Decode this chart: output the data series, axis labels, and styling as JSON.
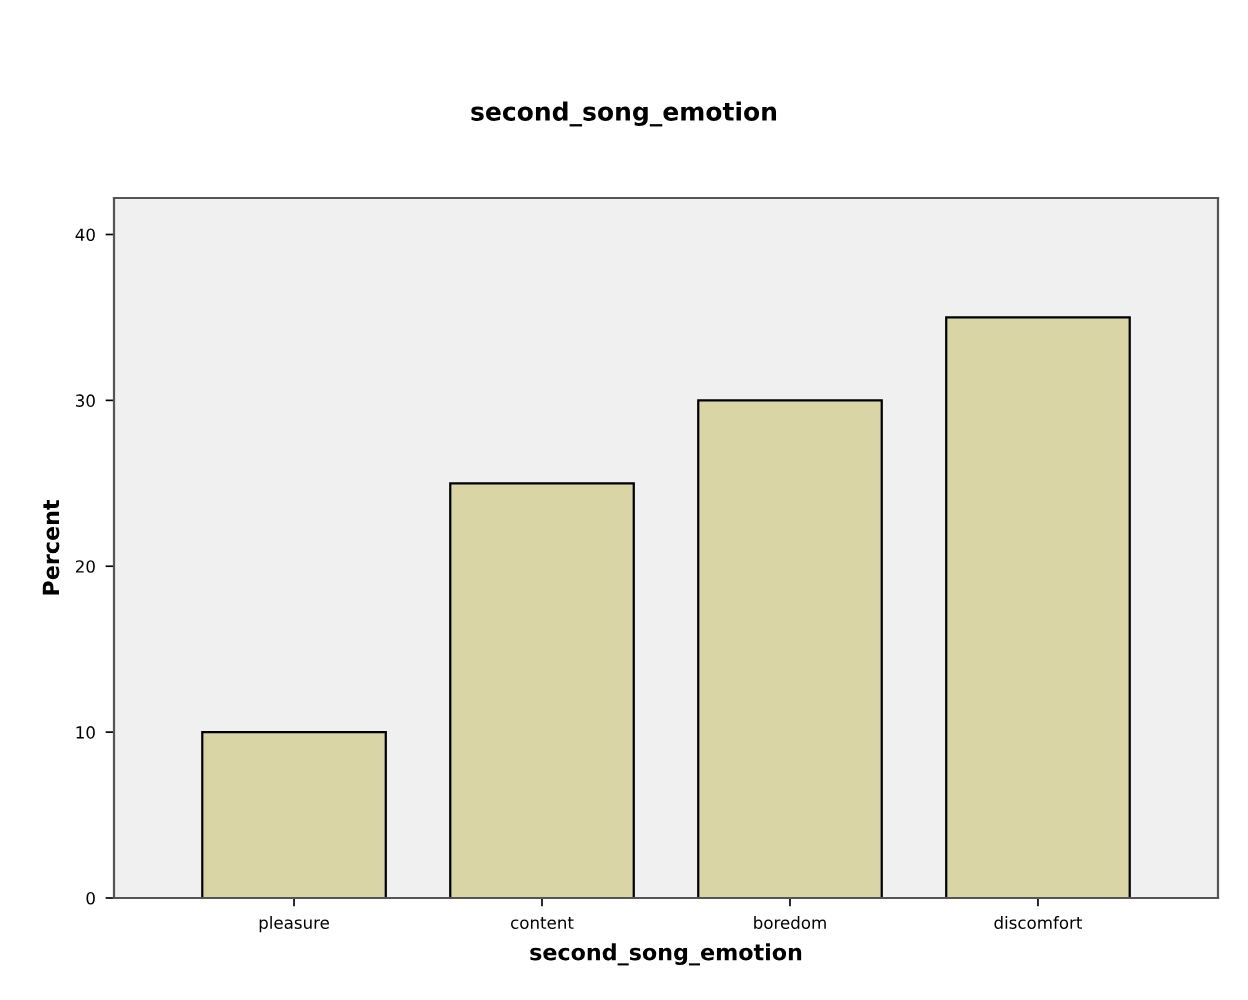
{
  "chart_data": {
    "type": "bar",
    "title": "second_song_emotion",
    "xlabel": "second_song_emotion",
    "ylabel": "Percent",
    "categories": [
      "pleasure",
      "content",
      "boredom",
      "discomfort"
    ],
    "values": [
      10,
      25,
      30,
      35
    ],
    "color": "#d9d5a5",
    "ylim": [
      0,
      42.2
    ],
    "yticks": [
      0,
      10,
      20,
      30,
      40
    ],
    "grid": false,
    "legend": false
  }
}
